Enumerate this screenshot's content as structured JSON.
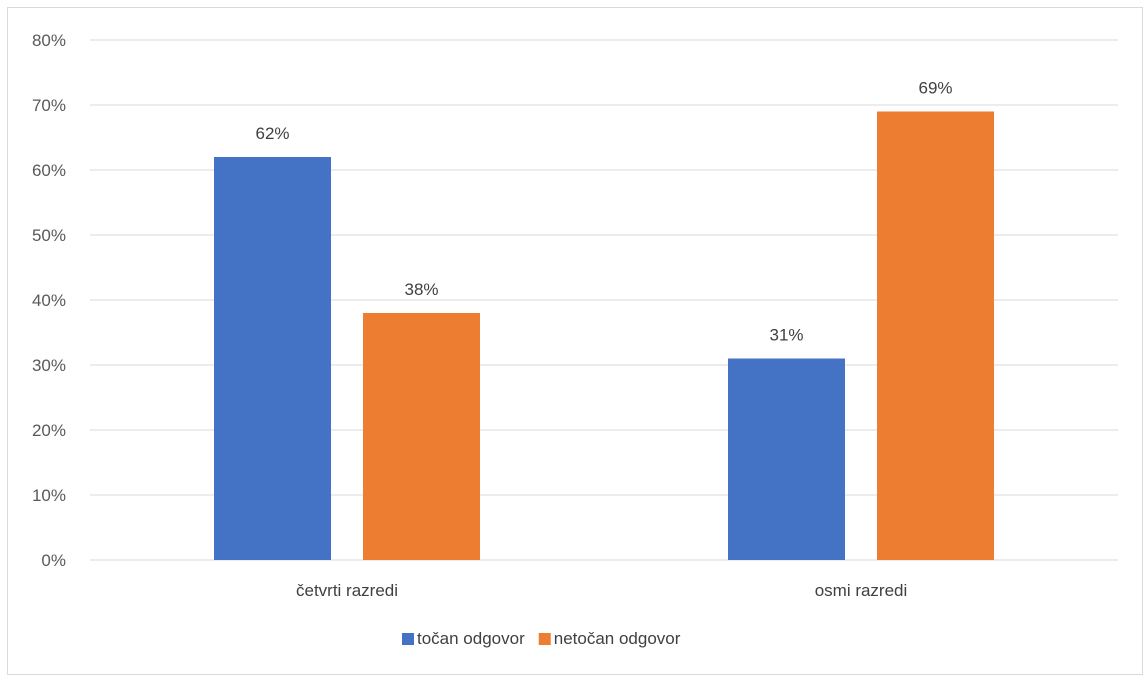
{
  "chart_data": {
    "type": "bar",
    "categories": [
      "četvrti razredi",
      "osmi razredi"
    ],
    "series": [
      {
        "name": "točan odgovor",
        "values": [
          62,
          31
        ],
        "labels": [
          "62%",
          "31%"
        ],
        "color": "#4472c4"
      },
      {
        "name": "netočan odgovor",
        "values": [
          38,
          69
        ],
        "labels": [
          "38%",
          "69%"
        ],
        "color": "#ed7d31"
      }
    ],
    "y_ticks": [
      "0%",
      "10%",
      "20%",
      "30%",
      "40%",
      "50%",
      "60%",
      "70%",
      "80%"
    ],
    "ylim": [
      0,
      80
    ],
    "grid": true,
    "legend_position": "bottom"
  }
}
